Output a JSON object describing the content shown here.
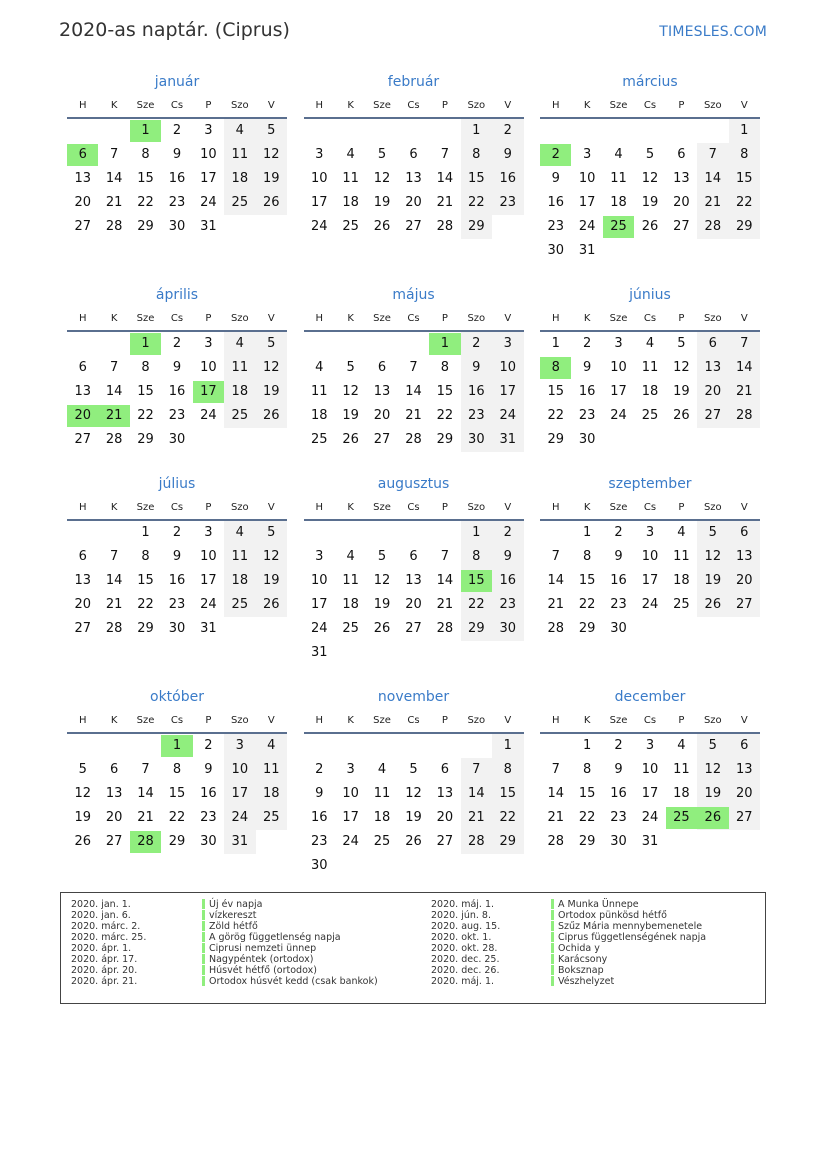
{
  "header": {
    "title": "2020-as naptár. (Ciprus)",
    "brand": "TIMESLES.COM"
  },
  "colors": {
    "accent": "#3a7bc8",
    "holiday": "#90ee7e",
    "weekend": "#f2f2f2"
  },
  "weekdays": [
    "H",
    "K",
    "Sze",
    "Cs",
    "P",
    "Szo",
    "V"
  ],
  "months": [
    {
      "name": "január",
      "starts_on": 2,
      "days": 31,
      "holidays": [
        1,
        6
      ]
    },
    {
      "name": "február",
      "starts_on": 5,
      "days": 29,
      "holidays": []
    },
    {
      "name": "március",
      "starts_on": 6,
      "days": 31,
      "holidays": [
        2,
        25
      ]
    },
    {
      "name": "április",
      "starts_on": 2,
      "days": 30,
      "holidays": [
        1,
        17,
        20,
        21
      ]
    },
    {
      "name": "május",
      "starts_on": 4,
      "days": 31,
      "holidays": [
        1
      ]
    },
    {
      "name": "június",
      "starts_on": 0,
      "days": 30,
      "holidays": [
        8
      ]
    },
    {
      "name": "július",
      "starts_on": 2,
      "days": 31,
      "holidays": []
    },
    {
      "name": "augusztus",
      "starts_on": 5,
      "days": 31,
      "holidays": [
        15
      ]
    },
    {
      "name": "szeptember",
      "starts_on": 1,
      "days": 30,
      "holidays": []
    },
    {
      "name": "október",
      "starts_on": 3,
      "days": 31,
      "holidays": [
        1,
        28
      ]
    },
    {
      "name": "november",
      "starts_on": 6,
      "days": 30,
      "holidays": []
    },
    {
      "name": "december",
      "starts_on": 1,
      "days": 31,
      "holidays": [
        25,
        26
      ]
    }
  ],
  "legend": [
    [
      {
        "date": "2020. jan. 1.",
        "name": "Új év napja"
      },
      {
        "date": "2020. jan. 6.",
        "name": "vízkereszt"
      },
      {
        "date": "2020. márc. 2.",
        "name": "Zöld hétfő"
      },
      {
        "date": "2020. márc. 25.",
        "name": "A görög függetlenség napja"
      },
      {
        "date": "2020. ápr. 1.",
        "name": "Ciprusi nemzeti ünnep"
      },
      {
        "date": "2020. ápr. 17.",
        "name": "Nagypéntek (ortodox)"
      },
      {
        "date": "2020. ápr. 20.",
        "name": "Húsvét hétfő (ortodox)"
      },
      {
        "date": "2020. ápr. 21.",
        "name": "Ortodox húsvét kedd (csak bankok)"
      }
    ],
    [
      {
        "date": "2020. máj. 1.",
        "name": "A Munka Ünnepe"
      },
      {
        "date": "2020. jún. 8.",
        "name": "Ortodox pünkösd hétfő"
      },
      {
        "date": "2020. aug. 15.",
        "name": "Szűz Mária mennybemenetele"
      },
      {
        "date": "2020. okt. 1.",
        "name": "Ciprus függetlenségének napja"
      },
      {
        "date": "2020. okt. 28.",
        "name": "Ochida y"
      },
      {
        "date": "2020. dec. 25.",
        "name": "Karácsony"
      },
      {
        "date": "2020. dec. 26.",
        "name": "Boksznap"
      },
      {
        "date": "2020. máj. 1.",
        "name": "Vészhelyzet"
      }
    ]
  ]
}
